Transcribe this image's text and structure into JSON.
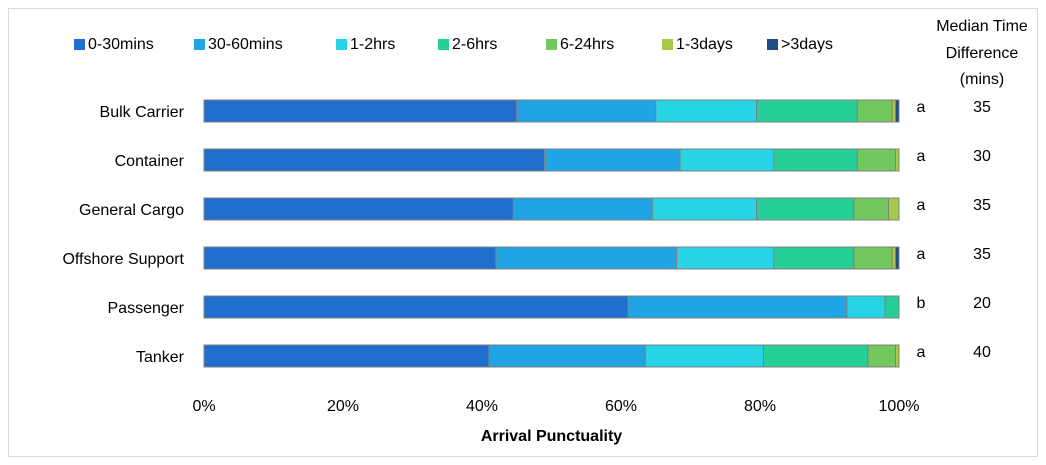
{
  "chart_data": {
    "type": "bar",
    "orientation": "horizontal",
    "stacked": true,
    "title": "",
    "xlabel": "Arrival Punctuality",
    "ylabel": "",
    "xlim": [
      0,
      100
    ],
    "x_ticks": [
      "0%",
      "20%",
      "40%",
      "60%",
      "80%",
      "100%"
    ],
    "grid": false,
    "legend_position": "top",
    "categories": [
      "Bulk Carrier",
      "Container",
      "General Cargo",
      "Offshore Support",
      "Passenger",
      "Tanker"
    ],
    "series": [
      {
        "name": "0-30mins",
        "color": "#1f6fce",
        "values": [
          45,
          49,
          44.5,
          42,
          61,
          41
        ]
      },
      {
        "name": "30-60mins",
        "color": "#20a4e6",
        "values": [
          20,
          19.5,
          20,
          26,
          31.5,
          22.5
        ]
      },
      {
        "name": "1-2hrs",
        "color": "#27d4e6",
        "values": [
          14.5,
          13.5,
          15,
          14,
          5.5,
          17
        ]
      },
      {
        "name": "2-6hrs",
        "color": "#26cf98",
        "values": [
          14.5,
          12,
          14,
          11.5,
          2,
          15
        ]
      },
      {
        "name": "6-24hrs",
        "color": "#72c85c",
        "values": [
          5,
          5.5,
          5,
          5.5,
          0,
          4
        ]
      },
      {
        "name": "1-3days",
        "color": "#a6c94a",
        "values": [
          0.5,
          0.5,
          1.5,
          0.5,
          0,
          0.5
        ]
      },
      {
        "name": ">3days",
        "color": "#1e4a86",
        "values": [
          0.5,
          0,
          0,
          0.5,
          0,
          0
        ]
      }
    ],
    "side_table": {
      "header": "Median Time Difference (mins)",
      "header_lines": [
        "Median Time",
        "Difference",
        "(mins)"
      ],
      "groups": [
        "a",
        "a",
        "a",
        "a",
        "b",
        "a"
      ],
      "values": [
        "35",
        "30",
        "35",
        "35",
        "20",
        "40"
      ]
    }
  }
}
